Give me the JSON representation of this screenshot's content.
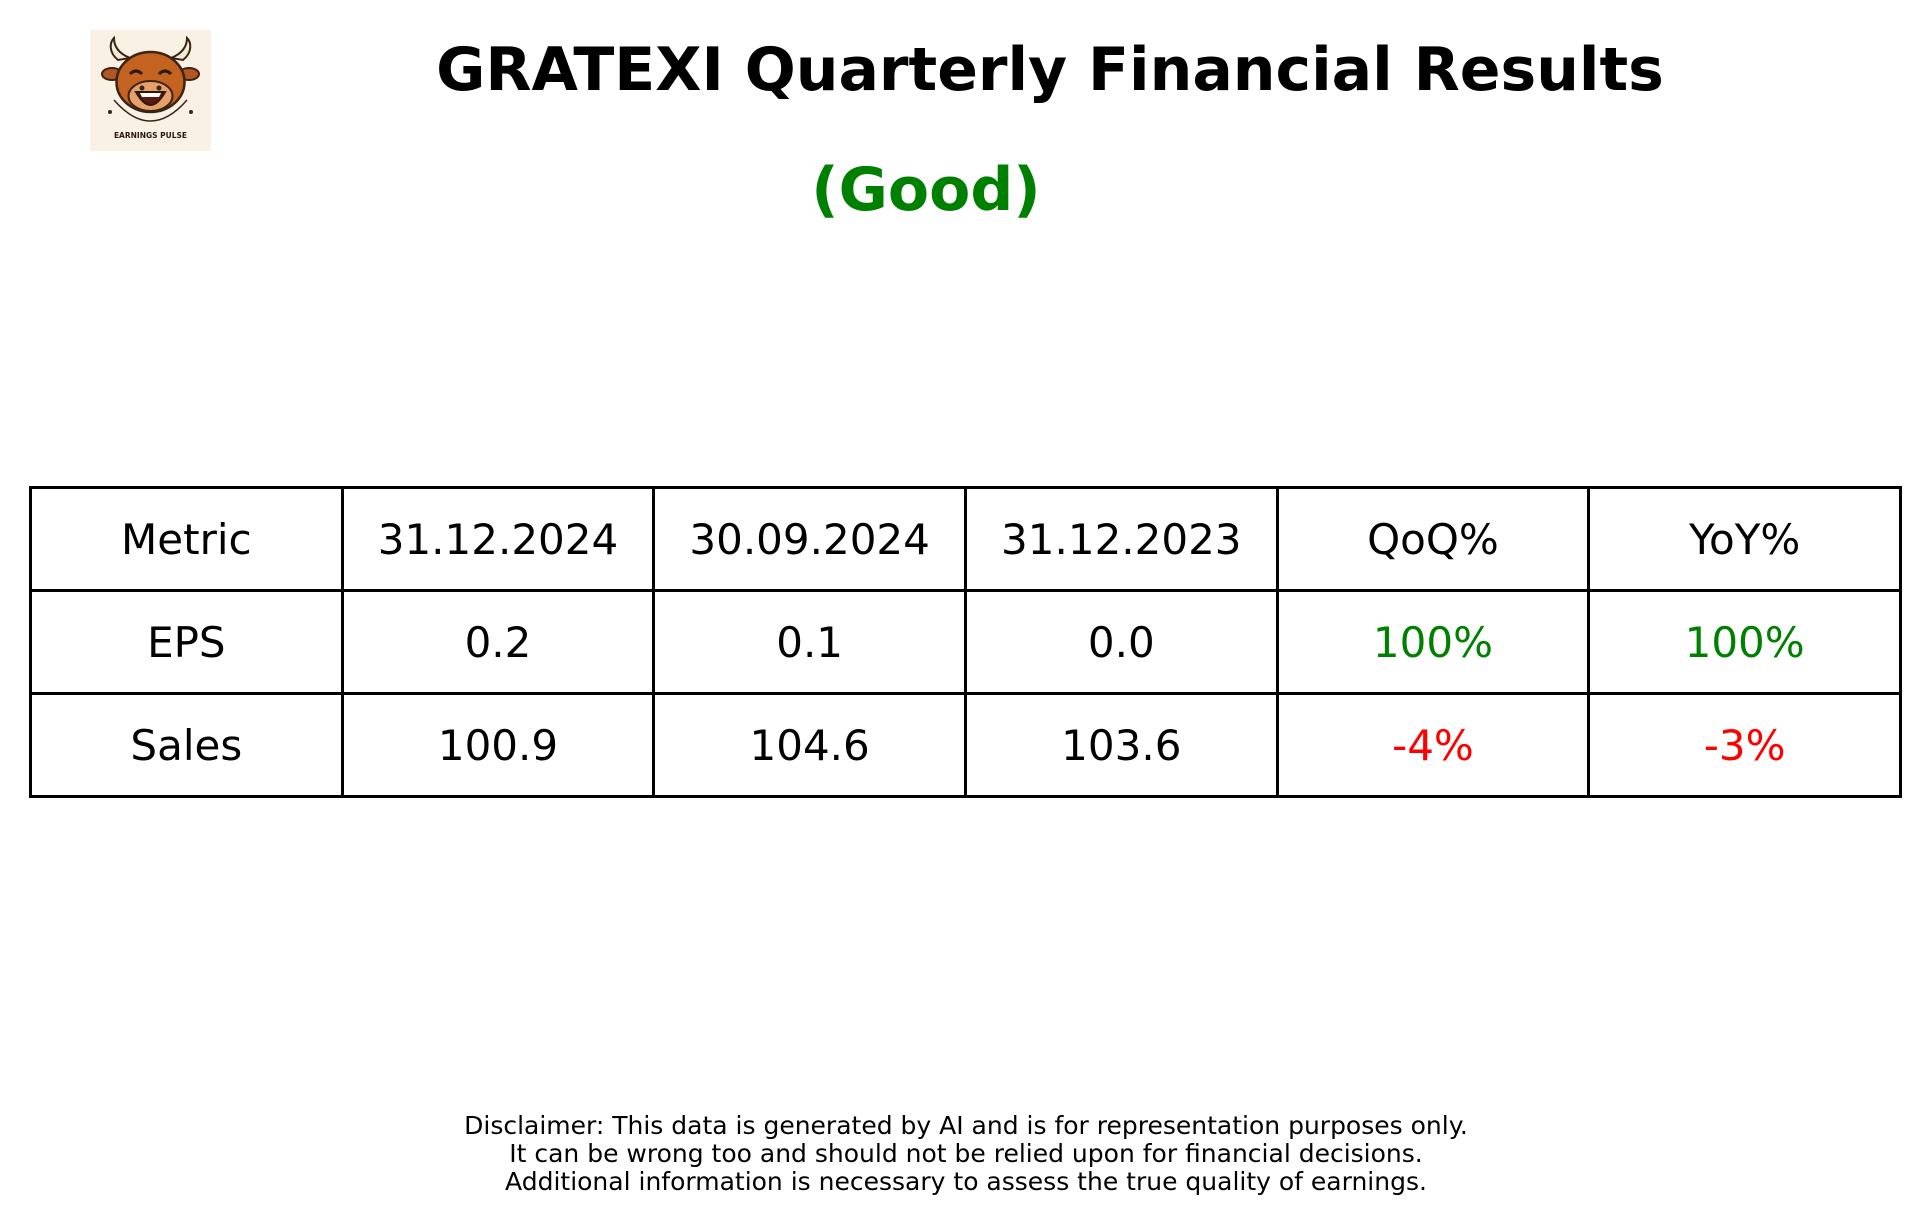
{
  "header": {
    "logo_label": "EARNINGS PULSE",
    "logo_icon": "bull-mascot-icon",
    "title": "GRATEXI Quarterly Financial Results",
    "rating": "(Good)",
    "rating_color": "#008000"
  },
  "table": {
    "columns": [
      "Metric",
      "31.12.2024",
      "30.09.2024",
      "31.12.2023",
      "QoQ%",
      "YoY%"
    ],
    "rows": [
      {
        "metric": "EPS",
        "q_current": "0.2",
        "q_previous": "0.1",
        "q_year_ago": "0.0",
        "qoq": "100%",
        "qoq_color": "#008000",
        "yoy": "100%",
        "yoy_color": "#008000"
      },
      {
        "metric": "Sales",
        "q_current": "100.9",
        "q_previous": "104.6",
        "q_year_ago": "103.6",
        "qoq": "-4%",
        "qoq_color": "#ff0000",
        "yoy": "-3%",
        "yoy_color": "#ff0000"
      }
    ]
  },
  "disclaimer": {
    "lines": [
      "Disclaimer: This data is generated by AI and is for representation purposes only.",
      "It can be wrong too and should not be relied upon for financial decisions.",
      "Additional information is necessary to assess the true quality of earnings."
    ]
  }
}
